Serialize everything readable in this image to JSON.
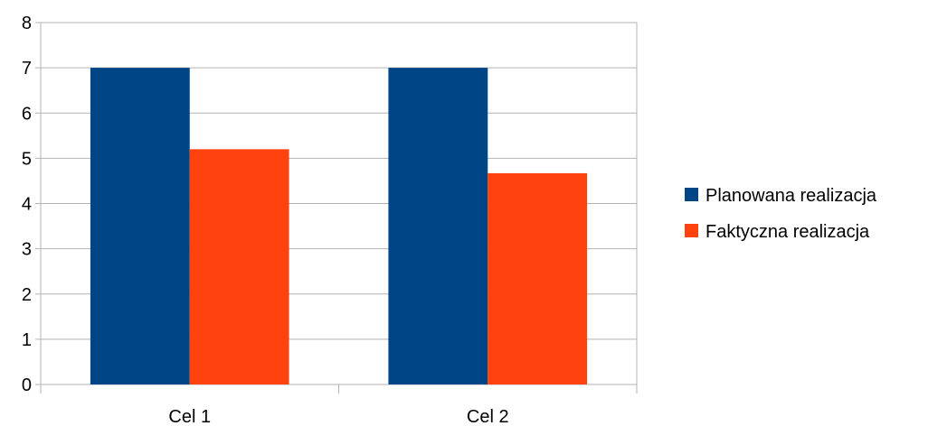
{
  "chart_data": {
    "type": "bar",
    "title": "",
    "xlabel": "",
    "ylabel": "",
    "categories": [
      "Cel 1",
      "Cel 2"
    ],
    "series": [
      {
        "name": "Planowana realizacja",
        "values": [
          7,
          7
        ],
        "color": "#004586"
      },
      {
        "name": "Faktyczna realizacja",
        "values": [
          5.2,
          4.67
        ],
        "color": "#ff420e"
      }
    ],
    "ylim": [
      0,
      8
    ],
    "yticks": [
      "0",
      "1",
      "2",
      "3",
      "4",
      "5",
      "6",
      "7",
      "8"
    ],
    "grid": true,
    "legend": "right"
  }
}
